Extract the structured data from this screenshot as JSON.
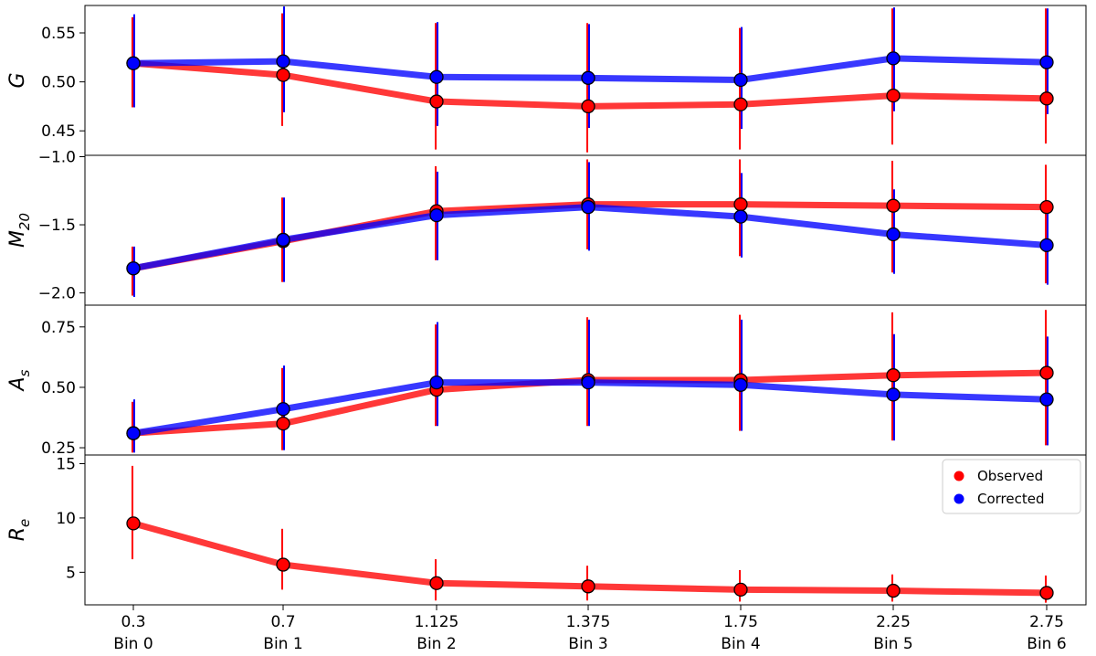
{
  "chart_data": {
    "type": "line",
    "x_ticks": [
      "0.3",
      "0.7",
      "1.125",
      "1.375",
      "1.75",
      "2.25",
      "2.75"
    ],
    "bin_labels": [
      "Bin 0",
      "Bin 1",
      "Bin 2",
      "Bin 3",
      "Bin 4",
      "Bin 5",
      "Bin 6"
    ],
    "legend": {
      "placement": "upper-right of bottom panel",
      "entries": [
        {
          "name": "Observed",
          "color": "#ff0000"
        },
        {
          "name": "Corrected",
          "color": "#0000ff"
        }
      ]
    },
    "panels": [
      {
        "id": "G",
        "ylabel_main": "G",
        "ylabel_sub": "",
        "ylim": [
          0.425,
          0.578
        ],
        "yticks": [
          0.45,
          0.5,
          0.55
        ],
        "ytick_labels": [
          "0.45",
          "0.50",
          "0.55"
        ],
        "series": [
          {
            "name": "Observed",
            "color": "#ff0000",
            "values": [
              0.519,
              0.507,
              0.48,
              0.475,
              0.477,
              0.486,
              0.483
            ],
            "err_low": [
              0.474,
              0.455,
              0.431,
              0.428,
              0.431,
              0.436,
              0.437
            ],
            "err_high": [
              0.566,
              0.57,
              0.56,
              0.56,
              0.555,
              0.575,
              0.575
            ]
          },
          {
            "name": "Corrected",
            "color": "#0000ff",
            "values": [
              0.519,
              0.521,
              0.505,
              0.504,
              0.502,
              0.524,
              0.52
            ],
            "err_low": [
              0.474,
              0.469,
              0.455,
              0.453,
              0.452,
              0.47,
              0.467
            ],
            "err_high": [
              0.569,
              0.577,
              0.561,
              0.559,
              0.556,
              0.576,
              0.575
            ]
          }
        ]
      },
      {
        "id": "M20",
        "ylabel_main": "M",
        "ylabel_sub": "20",
        "ylim": [
          -2.09,
          -0.99
        ],
        "yticks": [
          -2.0,
          -1.5,
          -1.0
        ],
        "ytick_labels": [
          "−2.0",
          "−1.5",
          "−1.0"
        ],
        "series": [
          {
            "name": "Observed",
            "color": "#ff0000",
            "values": [
              -1.82,
              -1.62,
              -1.4,
              -1.35,
              -1.35,
              -1.36,
              -1.37
            ],
            "err_low": [
              -2.02,
              -1.92,
              -1.76,
              -1.68,
              -1.73,
              -1.85,
              -1.93
            ],
            "err_high": [
              -1.66,
              -1.3,
              -1.07,
              -1.02,
              -1.02,
              -1.03,
              -1.06
            ]
          },
          {
            "name": "Corrected",
            "color": "#0000ff",
            "values": [
              -1.82,
              -1.61,
              -1.43,
              -1.37,
              -1.44,
              -1.57,
              -1.65
            ],
            "err_low": [
              -2.03,
              -1.92,
              -1.76,
              -1.69,
              -1.74,
              -1.86,
              -1.94
            ],
            "err_high": [
              -1.66,
              -1.3,
              -1.11,
              -1.04,
              -1.12,
              -1.24,
              -1.34
            ]
          }
        ]
      },
      {
        "id": "As",
        "ylabel_main": "A",
        "ylabel_sub": "s",
        "ylim": [
          0.22,
          0.84
        ],
        "yticks": [
          0.25,
          0.5,
          0.75
        ],
        "ytick_labels": [
          "0.25",
          "0.50",
          "0.75"
        ],
        "series": [
          {
            "name": "Observed",
            "color": "#ff0000",
            "values": [
              0.31,
              0.35,
              0.49,
              0.53,
              0.53,
              0.55,
              0.56
            ],
            "err_low": [
              0.23,
              0.24,
              0.34,
              0.34,
              0.32,
              0.28,
              0.26
            ],
            "err_high": [
              0.44,
              0.58,
              0.76,
              0.79,
              0.8,
              0.81,
              0.82
            ]
          },
          {
            "name": "Corrected",
            "color": "#0000ff",
            "values": [
              0.31,
              0.41,
              0.52,
              0.52,
              0.51,
              0.47,
              0.45
            ],
            "err_low": [
              0.23,
              0.24,
              0.34,
              0.34,
              0.32,
              0.28,
              0.26
            ],
            "err_high": [
              0.45,
              0.59,
              0.77,
              0.78,
              0.78,
              0.72,
              0.71
            ]
          }
        ]
      },
      {
        "id": "Re",
        "ylabel_main": "R",
        "ylabel_sub": "e",
        "ylim": [
          2.0,
          15.8
        ],
        "yticks": [
          5,
          10,
          15
        ],
        "ytick_labels": [
          "5",
          "10",
          "15"
        ],
        "series": [
          {
            "name": "Observed",
            "color": "#ff0000",
            "values": [
              9.5,
              5.7,
              4.0,
              3.7,
              3.4,
              3.3,
              3.1
            ],
            "err_low": [
              6.2,
              3.4,
              2.4,
              2.4,
              2.3,
              2.3,
              2.2
            ],
            "err_high": [
              14.8,
              9.0,
              6.2,
              5.6,
              5.2,
              4.8,
              4.7
            ]
          }
        ]
      }
    ]
  }
}
